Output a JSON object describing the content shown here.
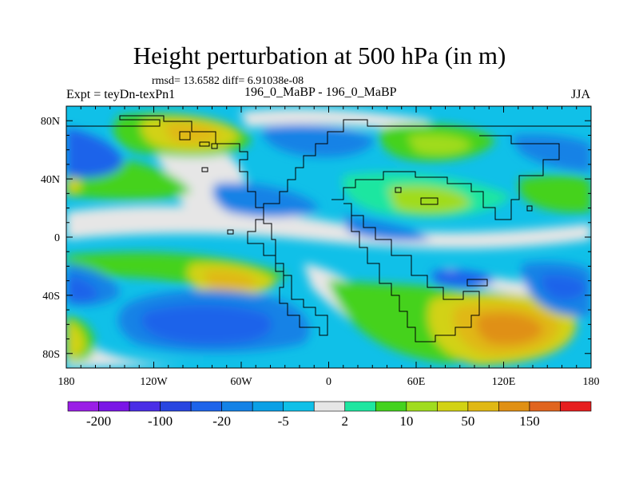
{
  "chart_data": {
    "type": "heatmap",
    "title": "Height perturbation at 500 hPa (in m)",
    "stats_label": "rmsd= 13.6582 diff= 6.91038e-08",
    "left_label": "Expt = teyDn-texPn1",
    "center_label": "196_0_MaBP - 196_0_MaBP",
    "right_label": "JJA",
    "x_axis": {
      "range": [
        -180,
        180
      ],
      "ticks": [
        -180,
        -120,
        -60,
        0,
        60,
        120,
        180
      ],
      "tick_labels": [
        "180",
        "120W",
        "60W",
        "0",
        "60E",
        "120E",
        "180"
      ]
    },
    "y_axis": {
      "range": [
        -90,
        90
      ],
      "ticks": [
        80,
        40,
        0,
        -40,
        -80
      ],
      "tick_labels": [
        "80N",
        "40N",
        "0",
        "40S",
        "80S"
      ]
    },
    "colorbar": {
      "colors": [
        "#9a1ee6",
        "#7a16e6",
        "#4a2ee6",
        "#2846e0",
        "#1e64ea",
        "#1482e6",
        "#0aa0e6",
        "#10c0e8",
        "#e6e6e6",
        "#1ee6a0",
        "#44d21e",
        "#a0dc1e",
        "#d2d214",
        "#e0b814",
        "#e09014",
        "#e0641e",
        "#e61e1e"
      ],
      "labels": [
        "-200",
        "-100",
        "-20",
        "-5",
        "2",
        "10",
        "50",
        "150"
      ],
      "label_positions": [
        1,
        3,
        5,
        7,
        9,
        11,
        13,
        15
      ]
    },
    "features": [
      {
        "lon": -100,
        "lat": 65,
        "value": 50
      },
      {
        "lon": -155,
        "lat": 60,
        "value": -20
      },
      {
        "lon": -20,
        "lat": 65,
        "value": -10
      },
      {
        "lon": 70,
        "lat": 62,
        "value": 20
      },
      {
        "lon": 90,
        "lat": 28,
        "value": 15
      },
      {
        "lon": -40,
        "lat": 5,
        "value": -5
      },
      {
        "lon": -95,
        "lat": -35,
        "value": 40
      },
      {
        "lon": -90,
        "lat": -62,
        "value": -50
      },
      {
        "lon": 120,
        "lat": -62,
        "value": 90
      },
      {
        "lon": 140,
        "lat": -30,
        "value": -20
      },
      {
        "lon": -170,
        "lat": -70,
        "value": 60
      }
    ]
  }
}
